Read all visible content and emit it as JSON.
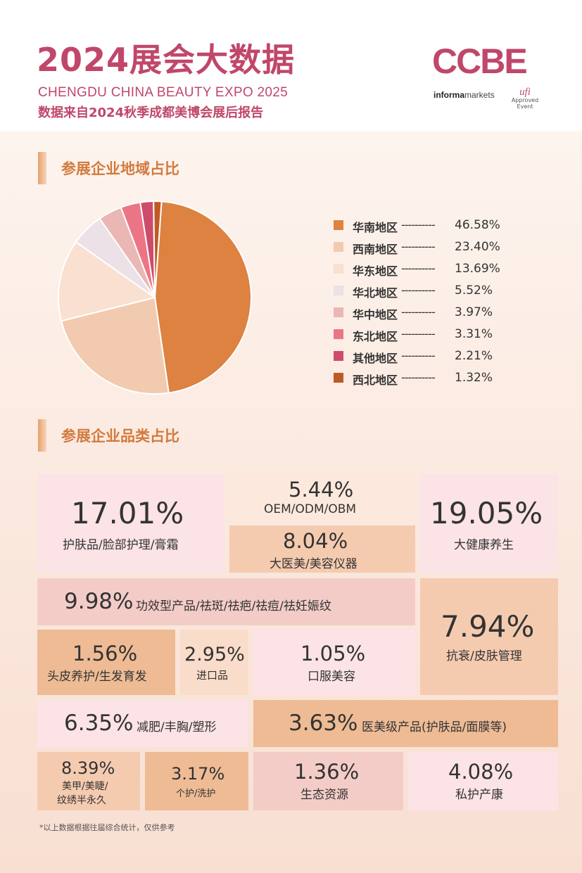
{
  "header": {
    "title": "2024展会大数据",
    "subtitle_en": "CHENGDU CHINA BEAUTY EXPO 2025",
    "subtitle_cn": "数据来自2024秋季成都美博会展后报告",
    "logo": {
      "brand": "CCBE",
      "informa_prefix": "informa",
      "informa_suffix": "markets",
      "ufi": "ufi",
      "ufi_line1": "Approved",
      "ufi_line2": "Event"
    }
  },
  "section_region": {
    "title": "参展企业地域占比"
  },
  "section_category": {
    "title": "参展企业品类占比"
  },
  "chart_data": [
    {
      "type": "pie",
      "title": "参展企业地域占比",
      "legend_position": "right",
      "slices": [
        {
          "label": "华南地区",
          "dashes": "----------",
          "value": 46.58,
          "display": "46.58%",
          "color": "#dd8240"
        },
        {
          "label": "西南地区",
          "dashes": "----------",
          "value": 23.4,
          "display": "23.40%",
          "color": "#f2cab0"
        },
        {
          "label": "华东地区",
          "dashes": "----------",
          "value": 13.69,
          "display": "13.69%",
          "color": "#fae0d0"
        },
        {
          "label": "华北地区",
          "dashes": "----------",
          "value": 5.52,
          "display": "5.52%",
          "color": "#ebe1e6"
        },
        {
          "label": "华中地区",
          "dashes": "----------",
          "value": 3.97,
          "display": "3.97%",
          "color": "#eab7b5"
        },
        {
          "label": "东北地区",
          "dashes": "----------",
          "value": 3.31,
          "display": "3.31%",
          "color": "#ec7585"
        },
        {
          "label": "其他地区",
          "dashes": "----------",
          "value": 2.21,
          "display": "2.21%",
          "color": "#cd4b6b"
        },
        {
          "label": "西北地区",
          "dashes": "----------",
          "value": 1.32,
          "display": "1.32%",
          "color": "#c05a25"
        }
      ]
    },
    {
      "type": "table",
      "title": "参展企业品类占比",
      "items": [
        {
          "value": "17.01%",
          "label": "护肤品/脸部护理/膏霜"
        },
        {
          "value": "5.44%",
          "label": "OEM/ODM/OBM"
        },
        {
          "value": "8.04%",
          "label": "大医美/美容仪器"
        },
        {
          "value": "19.05%",
          "label": "大健康养生"
        },
        {
          "value": "9.98%",
          "label": "功效型产品/祛斑/祛疤/祛痘/祛妊娠纹"
        },
        {
          "value": "7.94%",
          "label": "抗衰/皮肤管理"
        },
        {
          "value": "1.56%",
          "label": "头皮养护/生发育发"
        },
        {
          "value": "2.95%",
          "label": "进口品"
        },
        {
          "value": "1.05%",
          "label": "口服美容"
        },
        {
          "value": "6.35%",
          "label": "减肥/丰胸/塑形"
        },
        {
          "value": "3.63%",
          "label": "医美级产品(护肤品/面膜等)"
        },
        {
          "value": "8.39%",
          "label": "美甲/美睫/",
          "label2": "纹绣半永久"
        },
        {
          "value": "3.17%",
          "label": "个护/洗护"
        },
        {
          "value": "1.36%",
          "label": "生态资源"
        },
        {
          "value": "4.08%",
          "label": "私护产康"
        }
      ]
    }
  ],
  "footnote": "*以上数据根据往届综合统计，仅供参考"
}
